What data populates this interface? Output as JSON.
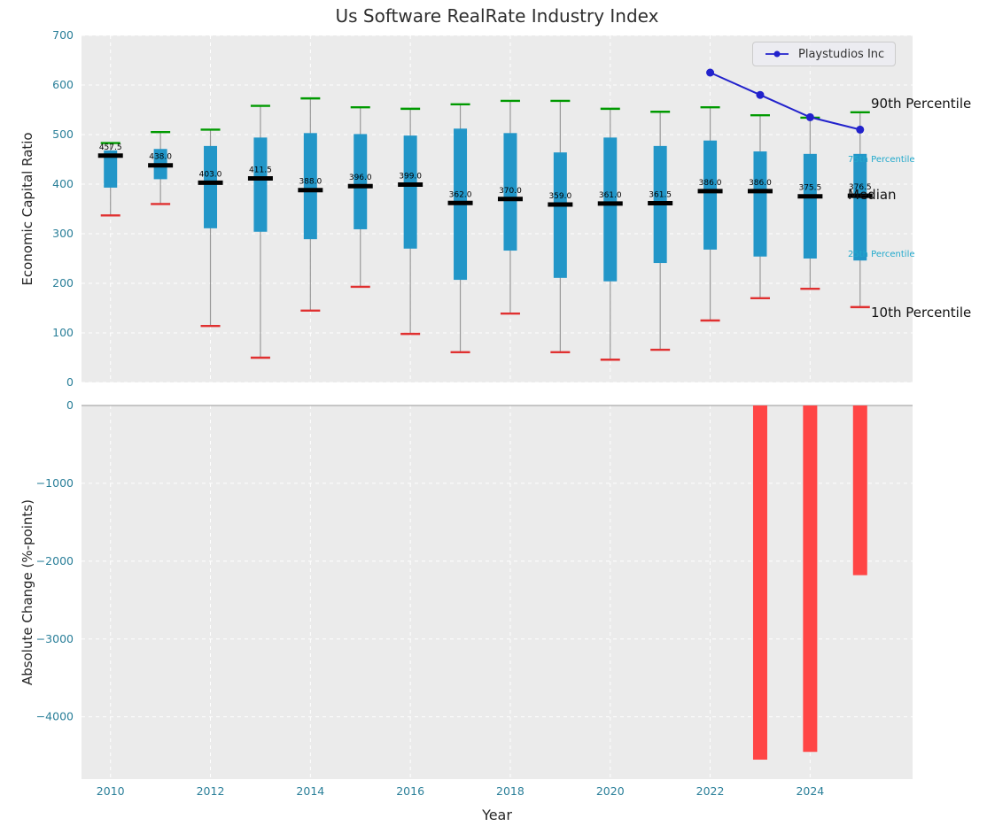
{
  "figure": {
    "title": "Us Software RealRate Industry Index",
    "background": "#ffffff",
    "plot_background": "#ebebeb"
  },
  "legend": {
    "label": "Playstudios Inc"
  },
  "annotations": {
    "p90": "90th Percentile",
    "p75": "75th Percentile",
    "median": "Median",
    "p25": "25th Percentile",
    "p10": "10th Percentile"
  },
  "palette": {
    "box": "#2296c8",
    "median": "#000000",
    "cap_high": "#009a00",
    "cap_low": "#e03030",
    "whisker": "#999999",
    "overlay_line": "#2222cc",
    "bar_negative": "#ff4545",
    "tick_label": "#2a7f99",
    "annotation_small": "#22a9cc",
    "grid": "#ffffff",
    "zero_line": "#aaaaaa"
  },
  "chart_data": [
    {
      "type": "boxplot",
      "title": "Us Software RealRate Industry Index",
      "ylabel": "Economic Capital Ratio",
      "ylim": [
        0,
        700
      ],
      "yticks": [
        0,
        100,
        200,
        300,
        400,
        500,
        600,
        700
      ],
      "grid": true,
      "legend_position": "upper right",
      "years": [
        2010,
        2011,
        2012,
        2013,
        2014,
        2015,
        2016,
        2017,
        2018,
        2019,
        2020,
        2021,
        2022,
        2023,
        2024,
        2025
      ],
      "p90": [
        483,
        505,
        510,
        558,
        573,
        555,
        552,
        561,
        568,
        568,
        552,
        546,
        555,
        539,
        534,
        545
      ],
      "p75": [
        468,
        471,
        477,
        494,
        503,
        501,
        498,
        512,
        503,
        464,
        494,
        477,
        488,
        466,
        461,
        461
      ],
      "median": [
        457.5,
        438.0,
        403.0,
        411.5,
        388.0,
        396.0,
        399.0,
        362.0,
        370.0,
        359.0,
        361.0,
        361.5,
        386.0,
        386.0,
        375.5,
        376.5
      ],
      "median_labels": [
        "457.5",
        "438.0",
        "403.0",
        "411.5",
        "388.0",
        "396.0",
        "399.0",
        "362.0",
        "370.0",
        "359.0",
        "361.0",
        "361.5",
        "386.0",
        "386.0",
        "375.5",
        "376.5"
      ],
      "p25": [
        393,
        410,
        311,
        304,
        289,
        309,
        270,
        207,
        266,
        211,
        204,
        241,
        268,
        254,
        250,
        246
      ],
      "p10": [
        337,
        360,
        114,
        50,
        145,
        193,
        98,
        61,
        139,
        61,
        46,
        66,
        125,
        170,
        189,
        152
      ],
      "overlay_series": {
        "name": "Playstudios Inc",
        "x": [
          2022,
          2023,
          2024,
          2025
        ],
        "y": [
          625,
          580,
          535,
          510
        ]
      }
    },
    {
      "type": "bar",
      "ylabel": "Absolute Change (%-points)",
      "xlabel": "Year",
      "ylim": [
        -4800,
        0
      ],
      "yticks": [
        0,
        -1000,
        -2000,
        -3000,
        -4000
      ],
      "xticks": [
        2010,
        2012,
        2014,
        2016,
        2018,
        2020,
        2022,
        2024
      ],
      "x": [
        2023,
        2024,
        2025
      ],
      "values": [
        -4550,
        -4450,
        -2180
      ]
    }
  ]
}
